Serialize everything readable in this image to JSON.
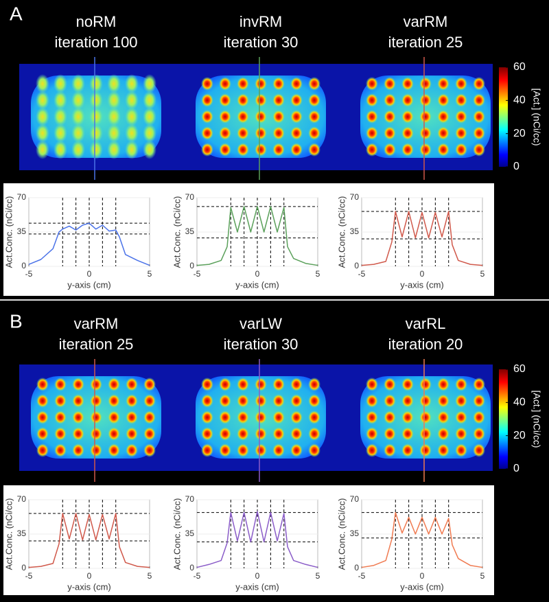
{
  "panels": [
    {
      "label": "A",
      "titles": [
        {
          "name": "noRM",
          "iteration": "iteration 100"
        },
        {
          "name": "invRM",
          "iteration": "iteration 30"
        },
        {
          "name": "varRM",
          "iteration": "iteration 25"
        }
      ],
      "colorbar": {
        "label": "[Act.] (nCi/cc)",
        "lim": [
          0,
          60
        ],
        "ticks": [
          0,
          20,
          40,
          60
        ]
      }
    },
    {
      "label": "B",
      "titles": [
        {
          "name": "varRM",
          "iteration": "iteration 25"
        },
        {
          "name": "varLW",
          "iteration": "iteration 30"
        },
        {
          "name": "varRL",
          "iteration": "iteration 20"
        }
      ],
      "colorbar": {
        "label": "[Act.] (nCi/cc)",
        "lim": [
          0,
          60
        ],
        "ticks": [
          0,
          20,
          40,
          60
        ]
      }
    }
  ],
  "chart_data": [
    {
      "type": "line",
      "xlabel": "y-axis (cm)",
      "ylabel": "Act.Conc. (nCi/cc)",
      "xlim": [
        -5,
        5
      ],
      "ylim": [
        0,
        70
      ],
      "xticks": [
        -5,
        0,
        5
      ],
      "yticks": [
        0,
        35,
        70
      ],
      "grid": true,
      "x": [
        -5,
        -4,
        -3,
        -2.5,
        -2.2,
        -1.65,
        -1.1,
        -0.55,
        0,
        0.55,
        1.1,
        1.65,
        2.2,
        2.5,
        3,
        4,
        5
      ],
      "series": [
        {
          "color": "#4a72e8",
          "values": [
            2,
            7,
            18,
            35,
            38,
            41,
            37,
            42,
            44,
            38,
            42,
            36,
            37,
            30,
            12,
            6,
            1
          ]
        }
      ],
      "vlines": [
        -2.2,
        -1.1,
        0,
        1.1,
        2.2
      ],
      "hlines": [
        44,
        33
      ]
    },
    {
      "type": "line",
      "xlabel": "y-axis (cm)",
      "ylabel": "Act.Conc. (nCi/cc)",
      "xlim": [
        -5,
        5
      ],
      "ylim": [
        0,
        70
      ],
      "xticks": [
        -5,
        0,
        5
      ],
      "yticks": [
        0,
        35,
        70
      ],
      "grid": true,
      "x": [
        -5,
        -4,
        -3,
        -2.5,
        -2.2,
        -1.65,
        -1.1,
        -0.55,
        0,
        0.55,
        1.1,
        1.65,
        2.2,
        2.5,
        3,
        4,
        5
      ],
      "series": [
        {
          "color": "#5aa05a",
          "values": [
            1,
            2,
            6,
            20,
            60,
            35,
            61,
            35,
            61,
            35,
            61,
            35,
            60,
            20,
            8,
            3,
            1
          ]
        }
      ],
      "vlines": [
        -2.2,
        -1.1,
        0,
        1.1,
        2.2
      ],
      "hlines": [
        61,
        29
      ]
    },
    {
      "type": "line",
      "xlabel": "y-axis (cm)",
      "ylabel": "Act.Conc. (nCi/cc)",
      "xlim": [
        -5,
        5
      ],
      "ylim": [
        0,
        70
      ],
      "xticks": [
        -5,
        0,
        5
      ],
      "yticks": [
        0,
        35,
        70
      ],
      "grid": true,
      "x": [
        -5,
        -4,
        -3,
        -2.5,
        -2.2,
        -1.65,
        -1.1,
        -0.55,
        0,
        0.55,
        1.1,
        1.65,
        2.2,
        2.5,
        3,
        4,
        5
      ],
      "series": [
        {
          "color": "#d0584a",
          "values": [
            1,
            2,
            5,
            25,
            56,
            30,
            56,
            29,
            55,
            29,
            55,
            30,
            56,
            22,
            6,
            2,
            1
          ]
        }
      ],
      "vlines": [
        -2.2,
        -1.1,
        0,
        1.1,
        2.2
      ],
      "hlines": [
        56,
        28
      ]
    },
    {
      "type": "line",
      "xlabel": "y-axis (cm)",
      "ylabel": "Act.Conc. (nCi/cc)",
      "xlim": [
        -5,
        5
      ],
      "ylim": [
        0,
        70
      ],
      "xticks": [
        -5,
        0,
        5
      ],
      "yticks": [
        0,
        35,
        70
      ],
      "grid": true,
      "x": [
        -5,
        -4,
        -3,
        -2.5,
        -2.2,
        -1.65,
        -1.1,
        -0.55,
        0,
        0.55,
        1.1,
        1.65,
        2.2,
        2.5,
        3,
        4,
        5
      ],
      "series": [
        {
          "color": "#d0584a",
          "values": [
            1,
            2,
            5,
            25,
            56,
            30,
            56,
            29,
            55,
            29,
            55,
            30,
            56,
            22,
            6,
            2,
            1
          ]
        }
      ],
      "vlines": [
        -2.2,
        -1.1,
        0,
        1.1,
        2.2
      ],
      "hlines": [
        56,
        28
      ]
    },
    {
      "type": "line",
      "xlabel": "y-axis (cm)",
      "ylabel": "Act.Conc. (nCi/cc)",
      "xlim": [
        -5,
        5
      ],
      "ylim": [
        0,
        70
      ],
      "xticks": [
        -5,
        0,
        5
      ],
      "yticks": [
        0,
        35,
        70
      ],
      "grid": true,
      "x": [
        -5,
        -4,
        -3,
        -2.5,
        -2.2,
        -1.65,
        -1.1,
        -0.55,
        0,
        0.55,
        1.1,
        1.65,
        2.2,
        2.5,
        3,
        4,
        5
      ],
      "series": [
        {
          "color": "#8a5cc8",
          "values": [
            1,
            4,
            8,
            26,
            57,
            28,
            57,
            27,
            58,
            27,
            57,
            28,
            56,
            22,
            8,
            4,
            1
          ]
        }
      ],
      "vlines": [
        -2.2,
        -1.1,
        0,
        1.1,
        2.2
      ],
      "hlines": [
        57,
        27
      ]
    },
    {
      "type": "line",
      "xlabel": "y-axis (cm)",
      "ylabel": "Act.Conc. (nCi/cc)",
      "xlim": [
        -5,
        5
      ],
      "ylim": [
        0,
        70
      ],
      "xticks": [
        -5,
        0,
        5
      ],
      "yticks": [
        0,
        35,
        70
      ],
      "grid": true,
      "x": [
        -5,
        -4,
        -3,
        -2.5,
        -2.2,
        -1.65,
        -1.1,
        -0.55,
        0,
        0.55,
        1.1,
        1.65,
        2.2,
        2.5,
        3,
        4,
        5
      ],
      "series": [
        {
          "color": "#f07a50",
          "values": [
            1,
            3,
            8,
            30,
            57,
            36,
            52,
            35,
            52,
            35,
            52,
            35,
            51,
            24,
            10,
            3,
            1
          ]
        }
      ],
      "vlines": [
        -2.2,
        -1.1,
        0,
        1.1,
        2.2
      ],
      "hlines": [
        57,
        31
      ]
    }
  ]
}
